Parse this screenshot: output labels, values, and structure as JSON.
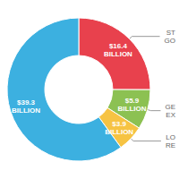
{
  "chart_data": {
    "type": "donut",
    "categories": [
      "ST\nGO",
      "GE\nEX",
      "LO\nRE",
      null
    ],
    "values": [
      16.4,
      5.9,
      3.9,
      39.3
    ],
    "value_labels": [
      "$16.4 BILLION",
      "$5.9 BILLION",
      "$3.9 BILLION",
      "$39.3 BILLION"
    ],
    "colors": [
      "#e8414d",
      "#8cc152",
      "#f6c343",
      "#3cb0e0"
    ],
    "data_labels": true
  }
}
